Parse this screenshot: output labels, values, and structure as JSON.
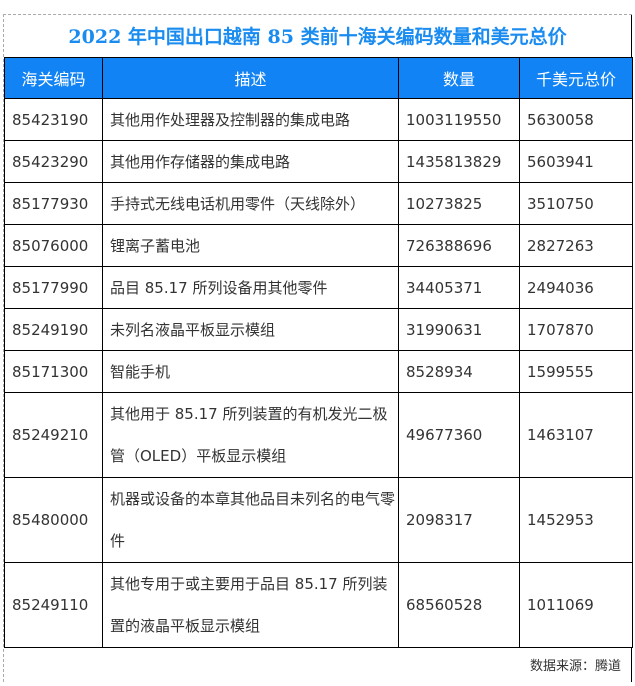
{
  "title": "2022 年中国出口越南 85 类前十海关编码数量和美元总价",
  "headers": [
    "海关编码",
    "描述",
    "数量",
    "千美元总价"
  ],
  "rows": [
    [
      "85423190",
      "其他用作处理器及控制器的集成电路",
      "1003119550",
      "5630058"
    ],
    [
      "85423290",
      "其他用作存储器的集成电路",
      "1435813829",
      "5603941"
    ],
    [
      "85177930",
      "手持式无线电话机用零件（天线除外）",
      "10273825",
      "3510750"
    ],
    [
      "85076000",
      "锂离子蓄电池",
      "726388696",
      "2827263"
    ],
    [
      "85177990",
      "品目 85.17 所列设备用其他零件",
      "34405371",
      "2494036"
    ],
    [
      "85249190",
      "未列名液晶平板显示模组",
      "31990631",
      "1707870"
    ],
    [
      "85171300",
      "智能手机",
      "8528934",
      "1599555"
    ],
    [
      "85249210",
      "其他用于 85.17 所列装置的有机发光二极管（OLED）平板显示模组",
      "49677360",
      "1463107"
    ],
    [
      "85480000",
      "机器或设备的本章其他品目未列名的电气零件",
      "2098317",
      "1452953"
    ],
    [
      "85249110",
      "其他专用于或主要用于品目 85.17 所列装置的液晶平板显示模组",
      "68560528",
      "1011069"
    ]
  ],
  "source": "数据来源：腾道",
  "colors": {
    "header_bg": "#1283f5",
    "title": "#1a8cf0"
  }
}
